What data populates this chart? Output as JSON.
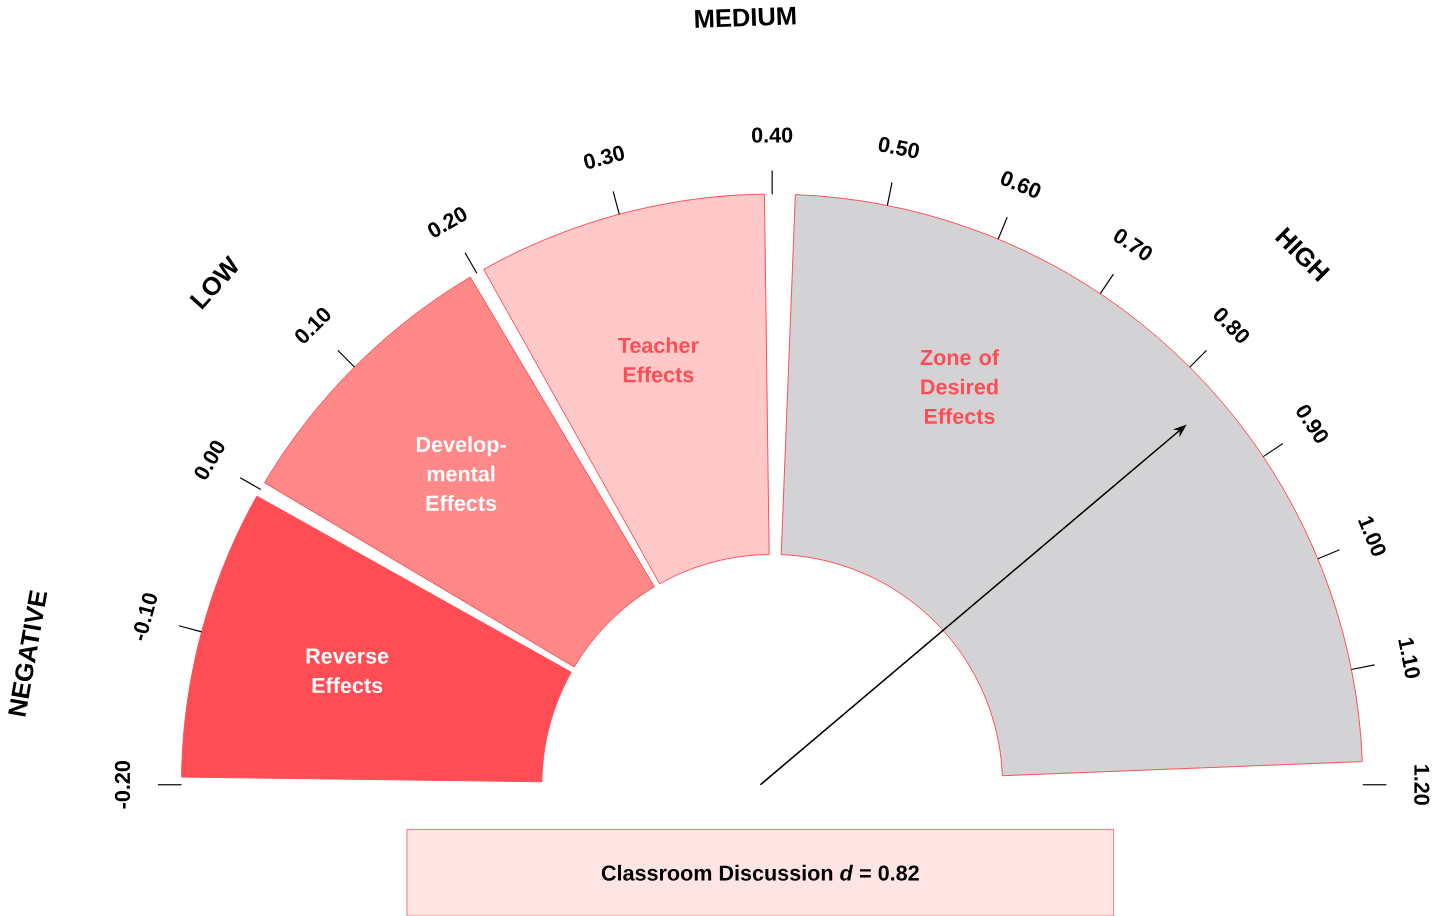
{
  "chart_data": {
    "type": "donut",
    "categories": [
      "Reverse Effects",
      "Develop-mental Effects",
      "Teacher Effects",
      "Zone of Desired Effects"
    ],
    "values": [
      16.67,
      16.67,
      16.66,
      50
    ],
    "colors": [
      "#ff4d55",
      "#ff8888",
      "#ffc9c9",
      "#d3d3d5"
    ],
    "needle": "Zone of Desired Effects",
    "annotations": [
      "NEGATIVE",
      "LOW",
      "MEDIUM",
      "HIGH",
      "-0.20",
      "-0.10",
      "0.00",
      "0.10",
      "0.20",
      "0.30",
      "0.40",
      "0.50",
      "0.60",
      "0.70",
      "0.80",
      "0.90",
      "1.00",
      "1.10",
      "1.20",
      "Classroom Discussion *d* = 0.82"
    ]
  }
}
